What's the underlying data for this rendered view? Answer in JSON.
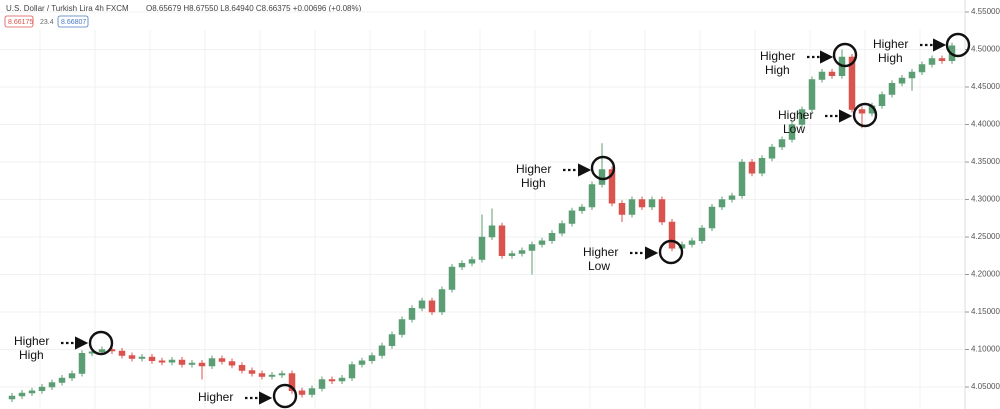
{
  "chart_data": {
    "type": "candlestick",
    "title": "U.S. Dollar / Turkish Lira  4h  FXCM",
    "ohlc_header": "O8.65679 H8.67550 L8.64940 C8.66375 +0.00696 (+0.08%)",
    "badges": [
      "8.66175",
      "23.4",
      "8.66807"
    ],
    "up_color": "#5c9e74",
    "down_color": "#d9534f",
    "grid": true,
    "ylim": [
      4.0207,
      4.566
    ],
    "yticks": [
      {
        "value": 4.55,
        "label": "4.55000"
      },
      {
        "value": 4.5,
        "label": "4.50000"
      },
      {
        "value": 4.45,
        "label": "4.45000"
      },
      {
        "value": 4.4,
        "label": "4.40000"
      },
      {
        "value": 4.35,
        "label": "4.35000"
      },
      {
        "value": 4.3,
        "label": "4.30000"
      },
      {
        "value": 4.25,
        "label": "4.25000"
      },
      {
        "value": 4.2,
        "label": "4.20000"
      },
      {
        "value": 4.15,
        "label": "4.15000"
      },
      {
        "value": 4.1,
        "label": "4.10000"
      },
      {
        "value": 4.05,
        "label": "4.05000"
      }
    ],
    "open": [
      4.034,
      4.038,
      4.042,
      4.045,
      4.05,
      4.056,
      4.062,
      4.068,
      4.095,
      4.097,
      4.1,
      4.098,
      4.092,
      4.088,
      4.09,
      4.085,
      4.083,
      4.086,
      4.08,
      4.082,
      4.078,
      4.088,
      4.084,
      4.079,
      4.072,
      4.068,
      4.064,
      4.066,
      4.068,
      4.045,
      4.04,
      4.048,
      4.06,
      4.058,
      4.062,
      4.08,
      4.085,
      4.092,
      4.105,
      4.12,
      4.14,
      4.155,
      4.165,
      4.15,
      4.18,
      4.21,
      4.215,
      4.22,
      4.25,
      4.265,
      4.225,
      4.228,
      4.232,
      4.24,
      4.245,
      4.255,
      4.268,
      4.285,
      4.29,
      4.32,
      4.34,
      4.295,
      4.28,
      4.3,
      4.29,
      4.3,
      4.27,
      4.235,
      4.24,
      4.245,
      4.262,
      4.29,
      4.3,
      4.305,
      4.35,
      4.335,
      4.355,
      4.37,
      4.38,
      4.4,
      4.42,
      4.46,
      4.47,
      4.465,
      4.49,
      4.42,
      4.415,
      4.425,
      4.44,
      4.455,
      4.462,
      4.47,
      4.48,
      4.488,
      4.485
    ],
    "high": [
      4.042,
      4.046,
      4.049,
      4.054,
      4.06,
      4.066,
      4.072,
      4.099,
      4.101,
      4.104,
      4.104,
      4.102,
      4.096,
      4.094,
      4.094,
      4.089,
      4.09,
      4.09,
      4.086,
      4.086,
      4.092,
      4.092,
      4.088,
      4.083,
      4.076,
      4.072,
      4.07,
      4.072,
      4.072,
      4.049,
      4.052,
      4.064,
      4.064,
      4.066,
      4.084,
      4.089,
      4.096,
      4.109,
      4.124,
      4.144,
      4.159,
      4.169,
      4.169,
      4.184,
      4.214,
      4.219,
      4.224,
      4.28,
      4.288,
      4.269,
      4.232,
      4.236,
      4.244,
      4.249,
      4.259,
      4.272,
      4.289,
      4.294,
      4.324,
      4.375,
      4.344,
      4.299,
      4.304,
      4.304,
      4.304,
      4.304,
      4.274,
      4.244,
      4.249,
      4.266,
      4.294,
      4.304,
      4.309,
      4.354,
      4.354,
      4.359,
      4.374,
      4.384,
      4.404,
      4.424,
      4.464,
      4.474,
      4.474,
      4.5,
      4.494,
      4.424,
      4.429,
      4.444,
      4.459,
      4.466,
      4.474,
      4.484,
      4.492,
      4.492,
      4.509
    ],
    "low": [
      4.03,
      4.034,
      4.038,
      4.041,
      4.046,
      4.052,
      4.058,
      4.064,
      4.091,
      4.093,
      4.094,
      4.088,
      4.084,
      4.084,
      4.081,
      4.079,
      4.079,
      4.076,
      4.076,
      4.06,
      4.074,
      4.08,
      4.075,
      4.068,
      4.064,
      4.06,
      4.06,
      4.062,
      4.041,
      4.036,
      4.036,
      4.044,
      4.054,
      4.054,
      4.058,
      4.076,
      4.081,
      4.088,
      4.101,
      4.116,
      4.136,
      4.151,
      4.146,
      4.146,
      4.176,
      4.206,
      4.211,
      4.216,
      4.246,
      4.221,
      4.221,
      4.224,
      4.2,
      4.236,
      4.241,
      4.251,
      4.264,
      4.281,
      4.286,
      4.316,
      4.291,
      4.27,
      4.276,
      4.286,
      4.286,
      4.266,
      4.231,
      4.228,
      4.236,
      4.241,
      4.258,
      4.286,
      4.296,
      4.301,
      4.331,
      4.331,
      4.351,
      4.366,
      4.376,
      4.396,
      4.416,
      4.456,
      4.461,
      4.461,
      4.416,
      4.395,
      4.411,
      4.421,
      4.436,
      4.451,
      4.445,
      4.466,
      4.476,
      4.481,
      4.481
    ],
    "close": [
      4.038,
      4.042,
      4.045,
      4.05,
      4.056,
      4.062,
      4.068,
      4.095,
      4.097,
      4.1,
      4.098,
      4.092,
      4.088,
      4.09,
      4.085,
      4.083,
      4.086,
      4.08,
      4.082,
      4.078,
      4.088,
      4.084,
      4.079,
      4.072,
      4.068,
      4.064,
      4.066,
      4.068,
      4.045,
      4.04,
      4.048,
      4.06,
      4.058,
      4.062,
      4.08,
      4.085,
      4.092,
      4.105,
      4.12,
      4.14,
      4.155,
      4.165,
      4.15,
      4.18,
      4.21,
      4.215,
      4.22,
      4.25,
      4.265,
      4.225,
      4.228,
      4.232,
      4.24,
      4.245,
      4.255,
      4.268,
      4.285,
      4.29,
      4.32,
      4.34,
      4.295,
      4.28,
      4.3,
      4.29,
      4.3,
      4.27,
      4.235,
      4.24,
      4.245,
      4.262,
      4.29,
      4.3,
      4.305,
      4.35,
      4.335,
      4.355,
      4.37,
      4.38,
      4.4,
      4.42,
      4.46,
      4.47,
      4.465,
      4.49,
      4.42,
      4.415,
      4.425,
      4.44,
      4.455,
      4.462,
      4.47,
      4.48,
      4.488,
      4.485,
      4.505
    ],
    "annotations": [
      {
        "lines": [
          "Higher",
          "High"
        ]
      },
      {
        "lines": [
          "Higher"
        ]
      },
      {
        "lines": [
          "Higher",
          "High"
        ]
      },
      {
        "lines": [
          "Higher",
          "Low"
        ]
      },
      {
        "lines": [
          "Higher",
          "High"
        ]
      },
      {
        "lines": [
          "Higher",
          "Low"
        ]
      },
      {
        "lines": [
          "Higher",
          "High"
        ]
      }
    ]
  }
}
